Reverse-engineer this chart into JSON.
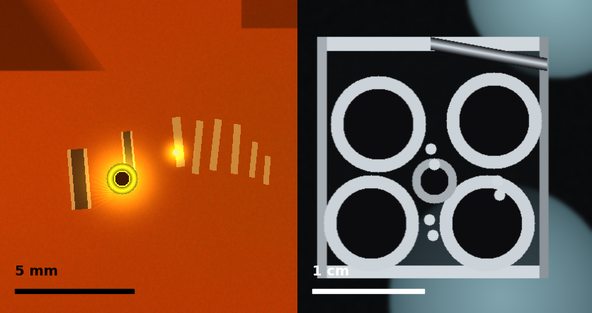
{
  "fig_width": 8.37,
  "fig_height": 4.42,
  "dpi": 100,
  "left_scalebar_text": "5 mm",
  "right_scalebar_text": "1 cm",
  "left_scalebar_color": "black",
  "right_scalebar_color": "white",
  "left_text_color": "black",
  "right_text_color": "white",
  "split_ratio": 0.502,
  "text_fontsize": 14
}
